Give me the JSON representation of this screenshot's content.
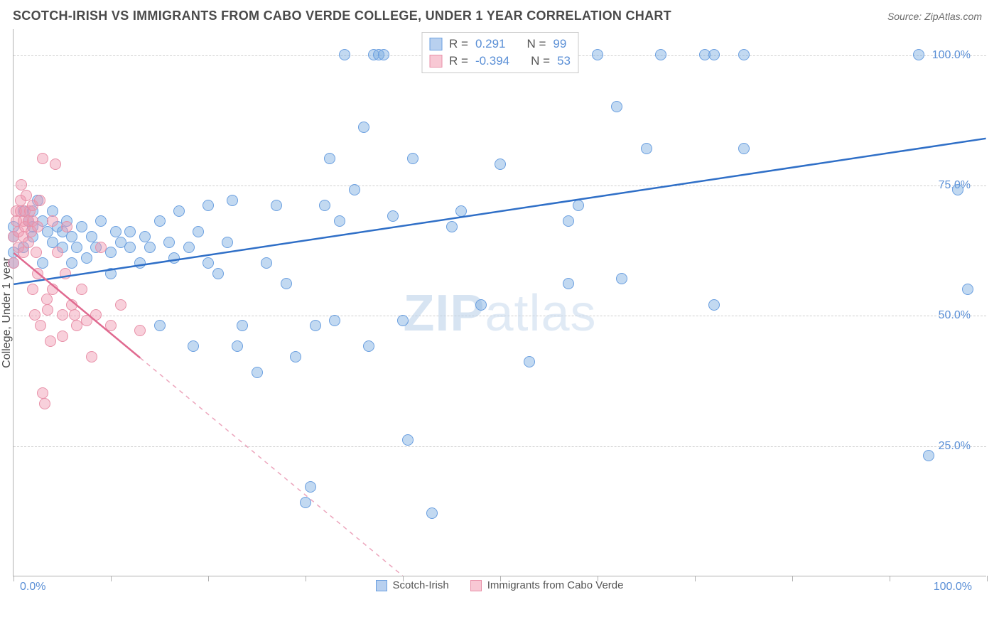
{
  "title": "SCOTCH-IRISH VS IMMIGRANTS FROM CABO VERDE COLLEGE, UNDER 1 YEAR CORRELATION CHART",
  "source": "Source: ZipAtlas.com",
  "watermark_a": "ZIP",
  "watermark_b": "atlas",
  "yaxis_title": "College, Under 1 year",
  "x_tick_labels": {
    "min": "0.0%",
    "max": "100.0%"
  },
  "y_tick_labels": [
    "25.0%",
    "50.0%",
    "75.0%",
    "100.0%"
  ],
  "y_tick_values": [
    25,
    50,
    75,
    100
  ],
  "x_tick_positions": [
    0,
    10,
    20,
    30,
    40,
    50,
    60,
    70,
    80,
    90,
    100
  ],
  "xlim": [
    0,
    100
  ],
  "ylim": [
    0,
    105
  ],
  "series": {
    "a": {
      "name": "Scotch-Irish",
      "swatch_fill": "#b8d0ef",
      "swatch_border": "#6a9fe0",
      "point_fill": "rgba(120,170,225,0.45)",
      "point_border": "#6a9fe0",
      "line_color": "#2f6fc7",
      "R_label": "R =",
      "R_value": "0.291",
      "N_label": "N =",
      "N_value": "99",
      "trend": {
        "x1": 0,
        "y1": 56,
        "x2": 100,
        "y2": 84,
        "solid_until_x": 100
      },
      "points": [
        [
          0,
          60
        ],
        [
          0,
          62
        ],
        [
          0,
          65
        ],
        [
          0,
          67
        ],
        [
          1,
          70
        ],
        [
          1.5,
          68
        ],
        [
          1,
          63
        ],
        [
          2,
          65
        ],
        [
          2,
          67
        ],
        [
          2,
          70
        ],
        [
          2.5,
          72
        ],
        [
          3,
          60
        ],
        [
          3,
          68
        ],
        [
          3.5,
          66
        ],
        [
          4,
          64
        ],
        [
          4,
          70
        ],
        [
          4.5,
          67
        ],
        [
          5,
          63
        ],
        [
          5,
          66
        ],
        [
          5.5,
          68
        ],
        [
          6,
          60
        ],
        [
          6,
          65
        ],
        [
          6.5,
          63
        ],
        [
          7,
          67
        ],
        [
          7.5,
          61
        ],
        [
          8,
          65
        ],
        [
          8.5,
          63
        ],
        [
          9,
          68
        ],
        [
          10,
          58
        ],
        [
          10,
          62
        ],
        [
          10.5,
          66
        ],
        [
          11,
          64
        ],
        [
          12,
          63
        ],
        [
          12,
          66
        ],
        [
          13,
          60
        ],
        [
          13.5,
          65
        ],
        [
          14,
          63
        ],
        [
          15,
          48
        ],
        [
          15,
          68
        ],
        [
          16,
          64
        ],
        [
          16.5,
          61
        ],
        [
          17,
          70
        ],
        [
          18,
          63
        ],
        [
          18.5,
          44
        ],
        [
          19,
          66
        ],
        [
          20,
          60
        ],
        [
          20,
          71
        ],
        [
          21,
          58
        ],
        [
          22,
          64
        ],
        [
          22.5,
          72
        ],
        [
          23,
          44
        ],
        [
          23.5,
          48
        ],
        [
          25,
          39
        ],
        [
          26,
          60
        ],
        [
          27,
          71
        ],
        [
          28,
          56
        ],
        [
          29,
          42
        ],
        [
          30,
          14
        ],
        [
          30.5,
          17
        ],
        [
          31,
          48
        ],
        [
          32,
          71
        ],
        [
          32.5,
          80
        ],
        [
          33,
          49
        ],
        [
          33.5,
          68
        ],
        [
          34,
          100
        ],
        [
          35,
          74
        ],
        [
          36,
          86
        ],
        [
          36.5,
          44
        ],
        [
          37,
          100
        ],
        [
          37.5,
          100
        ],
        [
          38,
          100
        ],
        [
          39,
          69
        ],
        [
          40,
          49
        ],
        [
          40.5,
          26
        ],
        [
          41,
          80
        ],
        [
          43,
          12
        ],
        [
          45,
          67
        ],
        [
          46,
          70
        ],
        [
          48,
          52
        ],
        [
          50,
          79
        ],
        [
          53,
          41
        ],
        [
          55,
          100
        ],
        [
          57,
          68
        ],
        [
          57,
          56
        ],
        [
          58,
          71
        ],
        [
          60,
          100
        ],
        [
          62,
          90
        ],
        [
          62.5,
          57
        ],
        [
          65,
          82
        ],
        [
          66.5,
          100
        ],
        [
          71,
          100
        ],
        [
          72,
          100
        ],
        [
          72,
          52
        ],
        [
          75,
          100
        ],
        [
          75,
          82
        ],
        [
          93,
          100
        ],
        [
          94,
          23
        ],
        [
          97,
          74
        ],
        [
          98,
          55
        ]
      ]
    },
    "b": {
      "name": "Immigrants from Cabo Verde",
      "swatch_fill": "#f8c8d4",
      "swatch_border": "#e890a8",
      "point_fill": "rgba(240,150,175,0.45)",
      "point_border": "#e890a8",
      "line_color": "#e06a90",
      "R_label": "R =",
      "R_value": "-0.394",
      "N_label": "N =",
      "N_value": "53",
      "trend": {
        "x1": 0,
        "y1": 62,
        "x2": 40,
        "y2": 0,
        "solid_until_x": 13
      },
      "points": [
        [
          0,
          60
        ],
        [
          0,
          65
        ],
        [
          0.3,
          70
        ],
        [
          0.3,
          68
        ],
        [
          0.5,
          66
        ],
        [
          0.5,
          63
        ],
        [
          0.7,
          72
        ],
        [
          0.7,
          70
        ],
        [
          0.8,
          75
        ],
        [
          1,
          68
        ],
        [
          1,
          65
        ],
        [
          1,
          62
        ],
        [
          1.2,
          70
        ],
        [
          1.2,
          67
        ],
        [
          1.3,
          73
        ],
        [
          1.5,
          68
        ],
        [
          1.5,
          64
        ],
        [
          1.7,
          70
        ],
        [
          1.8,
          66
        ],
        [
          2,
          71
        ],
        [
          2,
          68
        ],
        [
          2,
          55
        ],
        [
          2.2,
          50
        ],
        [
          2.3,
          62
        ],
        [
          2.5,
          67
        ],
        [
          2.5,
          58
        ],
        [
          2.7,
          72
        ],
        [
          2.8,
          48
        ],
        [
          3,
          80
        ],
        [
          3,
          35
        ],
        [
          3.2,
          33
        ],
        [
          3.4,
          53
        ],
        [
          3.5,
          51
        ],
        [
          3.8,
          45
        ],
        [
          4,
          55
        ],
        [
          4,
          68
        ],
        [
          4.3,
          79
        ],
        [
          4.5,
          62
        ],
        [
          5,
          50
        ],
        [
          5,
          46
        ],
        [
          5.3,
          58
        ],
        [
          5.5,
          67
        ],
        [
          6,
          52
        ],
        [
          6.3,
          50
        ],
        [
          6.5,
          48
        ],
        [
          7,
          55
        ],
        [
          7.5,
          49
        ],
        [
          8,
          42
        ],
        [
          8.5,
          50
        ],
        [
          9,
          63
        ],
        [
          10,
          48
        ],
        [
          11,
          52
        ],
        [
          13,
          47
        ]
      ]
    }
  }
}
